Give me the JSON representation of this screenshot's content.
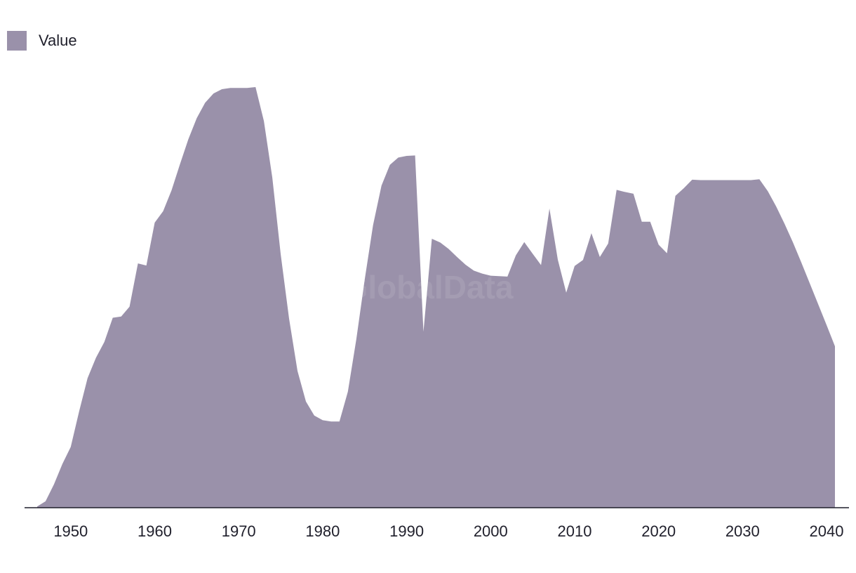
{
  "legend": {
    "label": "Value",
    "color": "#9a91aa"
  },
  "watermark": "GlobalData",
  "chart_data": {
    "type": "area",
    "title": "",
    "xlabel": "",
    "ylabel": "",
    "xlim": [
      1945,
      2042
    ],
    "ylim": [
      0,
      100
    ],
    "x_ticks": [
      1950,
      1960,
      1970,
      1980,
      1990,
      2000,
      2010,
      2020,
      2030,
      2040
    ],
    "grid": false,
    "legend_position": "top-left",
    "color": "#9a91aa",
    "axis_color": "#1f1f2b",
    "series": [
      {
        "name": "Value",
        "x": [
          1946,
          1947,
          1948,
          1949,
          1950,
          1951,
          1952,
          1953,
          1954,
          1955,
          1956,
          1957,
          1958,
          1959,
          1960,
          1961,
          1962,
          1963,
          1964,
          1965,
          1966,
          1967,
          1968,
          1969,
          1970,
          1971,
          1972,
          1973,
          1974,
          1975,
          1976,
          1977,
          1978,
          1979,
          1980,
          1981,
          1982,
          1983,
          1984,
          1985,
          1986,
          1987,
          1988,
          1989,
          1990,
          1991,
          1992,
          1993,
          1994,
          1995,
          1996,
          1997,
          1998,
          1999,
          2000,
          2001,
          2002,
          2003,
          2004,
          2005,
          2006,
          2007,
          2008,
          2009,
          2010,
          2011,
          2012,
          2013,
          2014,
          2015,
          2016,
          2017,
          2018,
          2019,
          2020,
          2021,
          2022,
          2023,
          2024,
          2025,
          2026,
          2027,
          2028,
          2029,
          2030,
          2031,
          2032,
          2033,
          2034,
          2035,
          2036,
          2037,
          2038,
          2039,
          2040,
          2041
        ],
        "values": [
          0.3,
          1.5,
          5.5,
          10.3,
          14.3,
          22.7,
          30.5,
          35.3,
          39.0,
          44.7,
          45.0,
          47.3,
          57.5,
          57.0,
          67.1,
          69.8,
          74.7,
          80.8,
          86.7,
          91.7,
          95.3,
          97.5,
          98.5,
          98.8,
          98.8,
          98.8,
          99.0,
          91.0,
          77.7,
          59.6,
          44.5,
          32.2,
          25.0,
          21.7,
          20.6,
          20.3,
          20.3,
          27.3,
          39.6,
          53.7,
          66.5,
          75.8,
          80.7,
          82.4,
          82.8,
          82.9,
          41.4,
          63.3,
          62.4,
          60.9,
          59.0,
          57.2,
          55.8,
          55.1,
          54.6,
          54.5,
          54.4,
          59.4,
          62.5,
          59.8,
          57.1,
          70.4,
          58.4,
          50.6,
          56.9,
          58.3,
          64.6,
          59.0,
          62.2,
          74.8,
          74.3,
          73.9,
          67.3,
          67.3,
          61.9,
          59.9,
          73.4,
          75.2,
          77.2,
          77.1,
          77.1,
          77.1,
          77.1,
          77.1,
          77.1,
          77.1,
          77.3,
          74.5,
          70.9,
          66.8,
          62.4,
          57.7,
          52.8,
          47.9,
          43.0,
          38.0
        ]
      }
    ]
  }
}
